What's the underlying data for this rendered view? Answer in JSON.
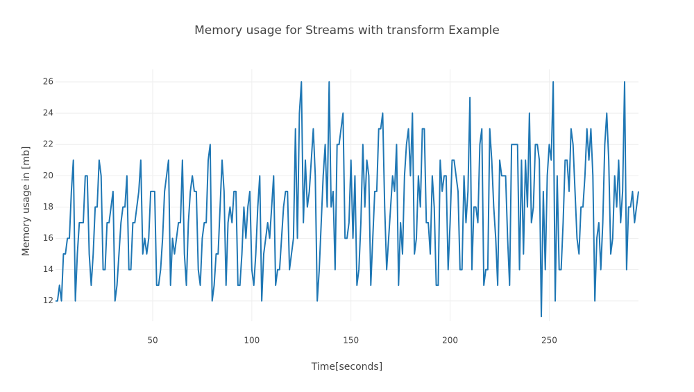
{
  "chart_data": {
    "type": "line",
    "title": "Memory usage for Streams with transform Example",
    "x_label": "Time[seconds]",
    "y_label": "Memory usage in [mb]",
    "color": "#1f77b4",
    "grid": true,
    "xlim": [
      1,
      295
    ],
    "ylim": [
      10.7,
      26.8
    ],
    "xticks": [
      50,
      100,
      150,
      200,
      250
    ],
    "yticks": [
      12,
      14,
      16,
      18,
      20,
      22,
      24,
      26
    ],
    "x": [
      1,
      2,
      3,
      4,
      5,
      6,
      7,
      8,
      9,
      10,
      11,
      12,
      13,
      14,
      15,
      16,
      17,
      18,
      19,
      20,
      21,
      22,
      23,
      24,
      25,
      26,
      27,
      28,
      29,
      30,
      31,
      32,
      33,
      34,
      35,
      36,
      37,
      38,
      39,
      40,
      41,
      42,
      43,
      44,
      45,
      46,
      47,
      48,
      49,
      50,
      51,
      52,
      53,
      54,
      55,
      56,
      57,
      58,
      59,
      60,
      61,
      62,
      63,
      64,
      65,
      66,
      67,
      68,
      69,
      70,
      71,
      72,
      73,
      74,
      75,
      76,
      77,
      78,
      79,
      80,
      81,
      82,
      83,
      84,
      85,
      86,
      87,
      88,
      89,
      90,
      91,
      92,
      93,
      94,
      95,
      96,
      97,
      98,
      99,
      100,
      101,
      102,
      103,
      104,
      105,
      106,
      107,
      108,
      109,
      110,
      111,
      112,
      113,
      114,
      115,
      116,
      117,
      118,
      119,
      120,
      121,
      122,
      123,
      124,
      125,
      126,
      127,
      128,
      129,
      130,
      131,
      132,
      133,
      134,
      135,
      136,
      137,
      138,
      139,
      140,
      141,
      142,
      143,
      144,
      145,
      146,
      147,
      148,
      149,
      150,
      151,
      152,
      153,
      154,
      155,
      156,
      157,
      158,
      159,
      160,
      161,
      162,
      163,
      164,
      165,
      166,
      167,
      168,
      169,
      170,
      171,
      172,
      173,
      174,
      175,
      176,
      177,
      178,
      179,
      180,
      181,
      182,
      183,
      184,
      185,
      186,
      187,
      188,
      189,
      190,
      191,
      192,
      193,
      194,
      195,
      196,
      197,
      198,
      199,
      200,
      201,
      202,
      203,
      204,
      205,
      206,
      207,
      208,
      209,
      210,
      211,
      212,
      213,
      214,
      215,
      216,
      217,
      218,
      219,
      220,
      221,
      222,
      223,
      224,
      225,
      226,
      227,
      228,
      229,
      230,
      231,
      232,
      233,
      234,
      235,
      236,
      237,
      238,
      239,
      240,
      241,
      242,
      243,
      244,
      245,
      246,
      247,
      248,
      249,
      250,
      251,
      252,
      253,
      254,
      255,
      256,
      257,
      258,
      259,
      260,
      261,
      262,
      263,
      264,
      265,
      266,
      267,
      268,
      269,
      270,
      271,
      272,
      273,
      274,
      275,
      276,
      277,
      278,
      279,
      280,
      281,
      282,
      283,
      284,
      285,
      286,
      287,
      288,
      289,
      290,
      291,
      292,
      293,
      294,
      295
    ],
    "values": [
      12,
      12,
      13,
      12,
      15,
      15,
      16,
      16,
      19,
      21,
      12,
      15,
      17,
      17,
      17,
      20,
      20,
      15,
      13,
      15,
      18,
      18,
      21,
      20,
      14,
      14,
      17,
      17,
      18,
      19,
      12,
      13,
      15,
      17,
      18,
      18,
      20,
      14,
      14,
      17,
      17,
      18,
      19,
      21,
      15,
      16,
      15,
      16,
      19,
      19,
      19,
      13,
      13,
      14,
      16,
      19,
      20,
      21,
      13,
      16,
      15,
      16,
      17,
      17,
      21,
      15,
      13,
      17,
      19,
      20,
      19,
      19,
      14,
      13,
      16,
      17,
      17,
      21,
      22,
      12,
      13,
      15,
      15,
      18,
      21,
      19,
      13,
      17,
      18,
      17,
      19,
      19,
      13,
      13,
      15,
      18,
      16,
      18,
      19,
      14,
      13,
      15,
      18,
      20,
      12,
      15,
      16,
      17,
      16,
      18,
      20,
      13,
      14,
      14,
      16,
      18,
      19,
      19,
      14,
      15,
      16,
      23,
      16,
      24,
      26,
      17,
      21,
      18,
      19,
      21,
      23,
      20,
      12,
      14,
      17,
      20,
      22,
      18,
      26,
      18,
      19,
      14,
      22,
      22,
      23,
      24,
      16,
      16,
      17,
      21,
      16,
      20,
      13,
      14,
      17,
      22,
      18,
      21,
      20,
      13,
      16,
      19,
      19,
      23,
      23,
      24,
      18,
      14,
      16,
      18,
      20,
      19,
      22,
      13,
      17,
      15,
      20,
      22,
      23,
      20,
      24,
      15,
      16,
      20,
      18,
      23,
      23,
      17,
      17,
      15,
      20,
      18,
      13,
      13,
      21,
      19,
      20,
      20,
      14,
      17,
      21,
      21,
      20,
      19,
      14,
      14,
      20,
      17,
      19,
      25,
      14,
      18,
      18,
      17,
      22,
      23,
      13,
      14,
      14,
      23,
      21,
      18,
      16,
      13,
      21,
      20,
      20,
      20,
      16,
      13,
      22,
      22,
      22,
      22,
      14,
      21,
      15,
      21,
      18,
      24,
      17,
      18,
      22,
      22,
      21,
      11,
      19,
      14,
      20,
      22,
      21,
      26,
      12,
      20,
      14,
      14,
      17,
      21,
      21,
      19,
      23,
      22,
      19,
      16,
      15,
      18,
      18,
      20,
      23,
      21,
      23,
      20,
      12,
      16,
      17,
      14,
      17,
      22,
      24,
      21,
      15,
      16,
      20,
      18,
      21,
      17,
      19,
      26,
      14,
      18,
      18,
      19,
      17,
      18,
      19
    ]
  }
}
